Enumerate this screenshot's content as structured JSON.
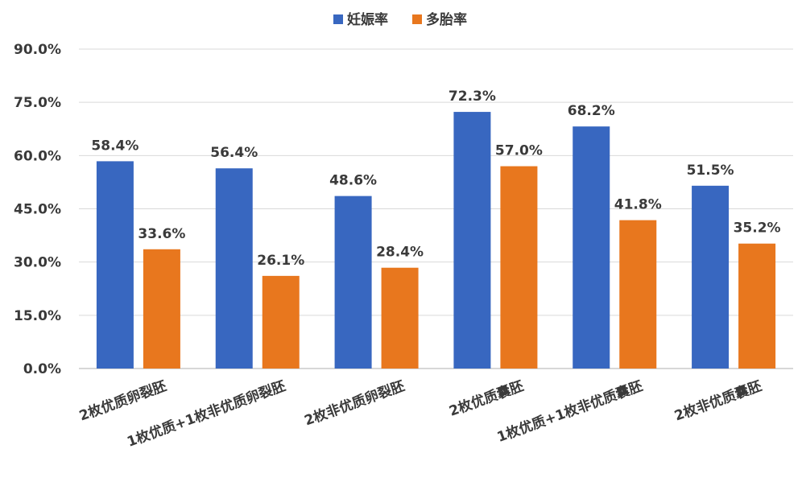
{
  "chart_data": {
    "type": "bar",
    "categories": [
      "2枚优质卵裂胚",
      "1枚优质+1枚非优质卵裂胚",
      "2枚非优质卵裂胚",
      "2枚优质囊胚",
      "1枚优质+1枚非优质囊胚",
      "2枚非优质囊胚"
    ],
    "series": [
      {
        "name": "妊娠率",
        "color": "#3867c0",
        "values": [
          58.4,
          56.4,
          48.6,
          72.3,
          68.2,
          51.5
        ],
        "labels": [
          "58.4%",
          "56.4%",
          "48.6%",
          "72.3%",
          "68.2%",
          "51.5%"
        ]
      },
      {
        "name": "多胎率",
        "color": "#e8771e",
        "values": [
          33.6,
          26.1,
          28.4,
          57.0,
          41.8,
          35.2
        ],
        "labels": [
          "33.6%",
          "26.1%",
          "28.4%",
          "57.0%",
          "41.8%",
          "35.2%"
        ]
      }
    ],
    "yticks": [
      "0.0%",
      "15.0%",
      "30.0%",
      "45.0%",
      "60.0%",
      "75.0%",
      "90.0%"
    ],
    "ylim": [
      0,
      90
    ],
    "grid": true,
    "legend_position": "top-center",
    "title": "",
    "xlabel": "",
    "ylabel": ""
  }
}
